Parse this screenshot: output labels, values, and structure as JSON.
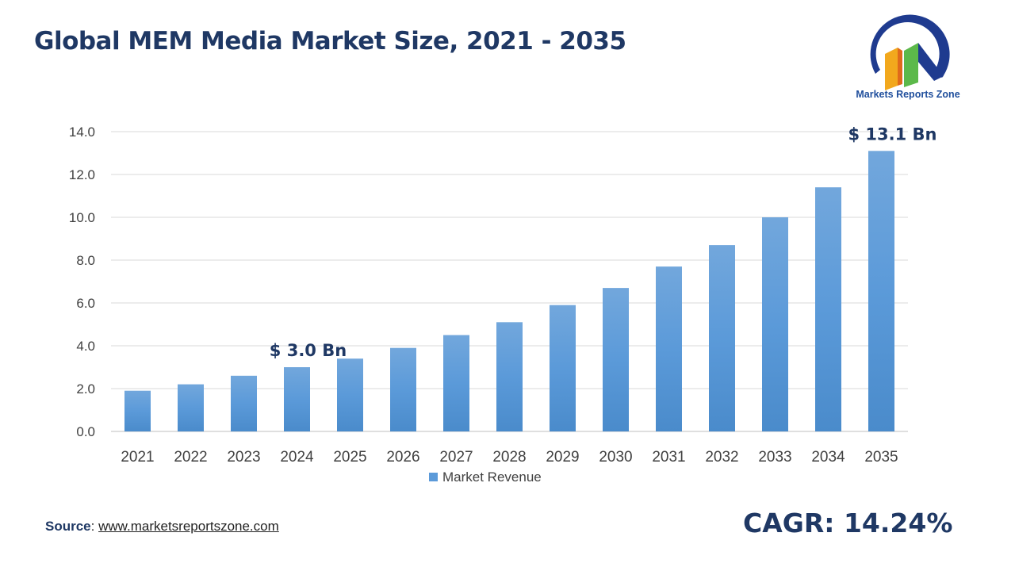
{
  "title": "Global MEM Media Market Size, 2021 - 2035",
  "logo": {
    "text": "Markets Reports Zone"
  },
  "source": {
    "label": "Source",
    "url_text": "www.marketsreportszone.com"
  },
  "cagr": "CAGR: 14.24%",
  "colors": {
    "bar_top": "#72a7dc",
    "bar_bottom": "#4a8bcb",
    "title": "#1f3864",
    "grid": "#d9d9d9"
  },
  "chart_data": {
    "type": "bar",
    "title": "Global MEM Media Market Size, 2021 - 2035",
    "categories": [
      "2021",
      "2022",
      "2023",
      "2024",
      "2025",
      "2026",
      "2027",
      "2028",
      "2029",
      "2030",
      "2031",
      "2032",
      "2033",
      "2034",
      "2035"
    ],
    "series": [
      {
        "name": "Market Revenue",
        "values": [
          1.9,
          2.2,
          2.6,
          3.0,
          3.4,
          3.9,
          4.5,
          5.1,
          5.9,
          6.7,
          7.7,
          8.7,
          10.0,
          11.4,
          13.1
        ]
      }
    ],
    "ylim": [
      0,
      14
    ],
    "yticks": [
      "0.0",
      "2.0",
      "4.0",
      "6.0",
      "8.0",
      "10.0",
      "12.0",
      "14.0"
    ],
    "grid": true,
    "legend": "bottom",
    "annotations": [
      {
        "category": "2024",
        "text": "$ 3.0 Bn"
      },
      {
        "category": "2035",
        "text": "$ 13.1 Bn"
      }
    ]
  }
}
